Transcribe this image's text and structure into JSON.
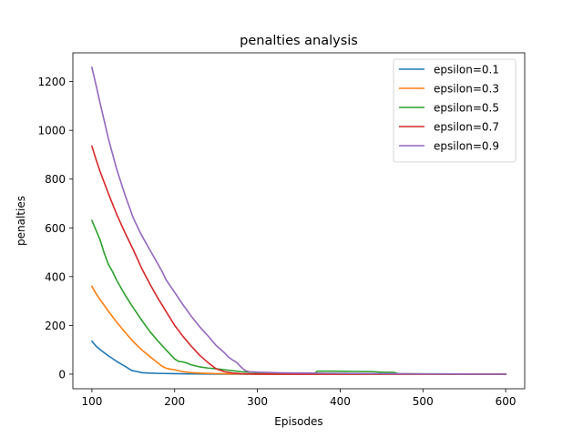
{
  "chart_data": {
    "type": "line",
    "title": "penalties analysis",
    "xlabel": "Episodes",
    "ylabel": "penalties",
    "xlim": [
      77,
      623
    ],
    "ylim": [
      -60,
      1318
    ],
    "xticks": [
      100,
      200,
      300,
      400,
      500,
      600
    ],
    "yticks": [
      0,
      200,
      400,
      600,
      800,
      1000,
      1200
    ],
    "grid": false,
    "legend_position": "top-right",
    "series": [
      {
        "name": "epsilon=0.1",
        "color": "#1f77b4",
        "points": [
          [
            100,
            135
          ],
          [
            105,
            115
          ],
          [
            110,
            100
          ],
          [
            120,
            75
          ],
          [
            130,
            52
          ],
          [
            140,
            32
          ],
          [
            148,
            15
          ],
          [
            155,
            10
          ],
          [
            160,
            6
          ],
          [
            170,
            4
          ],
          [
            180,
            3
          ],
          [
            200,
            2
          ],
          [
            220,
            1
          ],
          [
            260,
            0
          ],
          [
            600,
            0
          ]
        ]
      },
      {
        "name": "epsilon=0.3",
        "color": "#ff7f0e",
        "points": [
          [
            100,
            360
          ],
          [
            105,
            330
          ],
          [
            110,
            305
          ],
          [
            120,
            258
          ],
          [
            130,
            213
          ],
          [
            140,
            172
          ],
          [
            150,
            133
          ],
          [
            160,
            100
          ],
          [
            170,
            72
          ],
          [
            180,
            45
          ],
          [
            185,
            32
          ],
          [
            190,
            24
          ],
          [
            195,
            20
          ],
          [
            200,
            18
          ],
          [
            210,
            10
          ],
          [
            220,
            6
          ],
          [
            230,
            4
          ],
          [
            250,
            2
          ],
          [
            270,
            1
          ],
          [
            300,
            0
          ],
          [
            600,
            0
          ]
        ]
      },
      {
        "name": "epsilon=0.5",
        "color": "#2ca02c",
        "points": [
          [
            100,
            630
          ],
          [
            105,
            590
          ],
          [
            110,
            550
          ],
          [
            115,
            495
          ],
          [
            120,
            450
          ],
          [
            125,
            420
          ],
          [
            130,
            385
          ],
          [
            140,
            325
          ],
          [
            150,
            272
          ],
          [
            160,
            222
          ],
          [
            170,
            175
          ],
          [
            180,
            135
          ],
          [
            190,
            98
          ],
          [
            200,
            62
          ],
          [
            205,
            52
          ],
          [
            210,
            50
          ],
          [
            215,
            45
          ],
          [
            220,
            38
          ],
          [
            230,
            30
          ],
          [
            240,
            25
          ],
          [
            250,
            22
          ],
          [
            260,
            18
          ],
          [
            270,
            14
          ],
          [
            280,
            10
          ],
          [
            300,
            6
          ],
          [
            330,
            4
          ],
          [
            370,
            4
          ],
          [
            372,
            12
          ],
          [
            390,
            12
          ],
          [
            420,
            11
          ],
          [
            440,
            10
          ],
          [
            450,
            8
          ],
          [
            465,
            7
          ],
          [
            470,
            2
          ],
          [
            500,
            1
          ],
          [
            600,
            0
          ]
        ]
      },
      {
        "name": "epsilon=0.7",
        "color": "#d62728",
        "points": [
          [
            100,
            935
          ],
          [
            105,
            880
          ],
          [
            110,
            830
          ],
          [
            120,
            740
          ],
          [
            130,
            655
          ],
          [
            140,
            580
          ],
          [
            150,
            510
          ],
          [
            160,
            435
          ],
          [
            170,
            370
          ],
          [
            180,
            310
          ],
          [
            190,
            255
          ],
          [
            200,
            200
          ],
          [
            210,
            155
          ],
          [
            220,
            115
          ],
          [
            230,
            78
          ],
          [
            240,
            48
          ],
          [
            250,
            22
          ],
          [
            260,
            10
          ],
          [
            270,
            4
          ],
          [
            280,
            2
          ],
          [
            300,
            0
          ],
          [
            600,
            0
          ]
        ]
      },
      {
        "name": "epsilon=0.9",
        "color": "#9467bd",
        "points": [
          [
            100,
            1258
          ],
          [
            105,
            1185
          ],
          [
            110,
            1110
          ],
          [
            120,
            965
          ],
          [
            130,
            840
          ],
          [
            140,
            735
          ],
          [
            150,
            640
          ],
          [
            160,
            570
          ],
          [
            170,
            510
          ],
          [
            180,
            450
          ],
          [
            185,
            420
          ],
          [
            190,
            385
          ],
          [
            200,
            335
          ],
          [
            210,
            285
          ],
          [
            220,
            238
          ],
          [
            230,
            195
          ],
          [
            240,
            158
          ],
          [
            250,
            118
          ],
          [
            260,
            88
          ],
          [
            265,
            70
          ],
          [
            270,
            58
          ],
          [
            275,
            48
          ],
          [
            280,
            30
          ],
          [
            285,
            15
          ],
          [
            290,
            10
          ],
          [
            300,
            8
          ],
          [
            330,
            5
          ],
          [
            400,
            3
          ],
          [
            500,
            1
          ],
          [
            600,
            0
          ]
        ]
      }
    ]
  }
}
